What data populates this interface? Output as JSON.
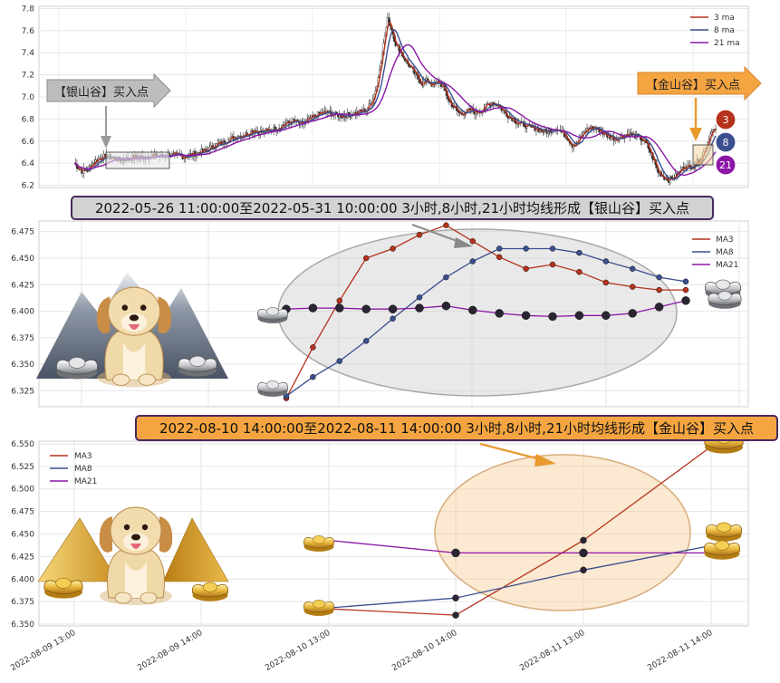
{
  "chart_data": [
    {
      "type": "line",
      "panel": "overview",
      "series": [
        {
          "name": "3 ma",
          "color": "#b5321c"
        },
        {
          "name": "8 ma",
          "color": "#3b4f8f"
        },
        {
          "name": "21 ma",
          "color": "#8b16a6"
        }
      ],
      "y_ticks": [
        "7.8",
        "7.6",
        "7.4",
        "7.2",
        "7.0",
        "6.8",
        "6.6",
        "6.4",
        "6.2"
      ],
      "ylim": [
        6.18,
        7.82
      ],
      "price_path": [
        [
          0,
          6.4
        ],
        [
          3,
          6.36
        ],
        [
          6,
          6.33
        ],
        [
          10,
          6.34
        ],
        [
          14,
          6.4
        ],
        [
          18,
          6.44
        ],
        [
          22,
          6.46
        ],
        [
          28,
          6.45
        ],
        [
          34,
          6.43
        ],
        [
          40,
          6.44
        ],
        [
          46,
          6.46
        ],
        [
          52,
          6.45
        ],
        [
          58,
          6.47
        ],
        [
          64,
          6.46
        ],
        [
          70,
          6.48
        ],
        [
          76,
          6.47
        ],
        [
          82,
          6.46
        ],
        [
          88,
          6.48
        ],
        [
          94,
          6.5
        ],
        [
          100,
          6.52
        ],
        [
          104,
          6.56
        ],
        [
          110,
          6.58
        ],
        [
          116,
          6.62
        ],
        [
          122,
          6.64
        ],
        [
          128,
          6.66
        ],
        [
          134,
          6.7
        ],
        [
          140,
          6.68
        ],
        [
          146,
          6.7
        ],
        [
          152,
          6.72
        ],
        [
          158,
          6.76
        ],
        [
          164,
          6.78
        ],
        [
          170,
          6.75
        ],
        [
          176,
          6.8
        ],
        [
          182,
          6.84
        ],
        [
          188,
          6.86
        ],
        [
          194,
          6.84
        ],
        [
          200,
          6.83
        ],
        [
          206,
          6.84
        ],
        [
          212,
          6.86
        ],
        [
          218,
          6.88
        ],
        [
          222,
          6.95
        ],
        [
          226,
          7.1
        ],
        [
          230,
          7.4
        ],
        [
          234,
          7.7
        ],
        [
          237,
          7.62
        ],
        [
          240,
          7.48
        ],
        [
          244,
          7.4
        ],
        [
          248,
          7.32
        ],
        [
          252,
          7.25
        ],
        [
          256,
          7.18
        ],
        [
          260,
          7.12
        ],
        [
          264,
          7.15
        ],
        [
          268,
          7.1
        ],
        [
          272,
          7.14
        ],
        [
          276,
          7.08
        ],
        [
          280,
          6.96
        ],
        [
          284,
          6.9
        ],
        [
          288,
          6.85
        ],
        [
          292,
          6.86
        ],
        [
          296,
          6.88
        ],
        [
          300,
          6.86
        ],
        [
          304,
          6.88
        ],
        [
          308,
          6.92
        ],
        [
          312,
          6.95
        ],
        [
          316,
          6.93
        ],
        [
          320,
          6.88
        ],
        [
          324,
          6.83
        ],
        [
          328,
          6.8
        ],
        [
          332,
          6.76
        ],
        [
          336,
          6.75
        ],
        [
          340,
          6.72
        ],
        [
          344,
          6.72
        ],
        [
          348,
          6.7
        ],
        [
          352,
          6.68
        ],
        [
          356,
          6.7
        ],
        [
          360,
          6.72
        ],
        [
          364,
          6.68
        ],
        [
          368,
          6.64
        ],
        [
          372,
          6.56
        ],
        [
          376,
          6.6
        ],
        [
          380,
          6.66
        ],
        [
          384,
          6.72
        ],
        [
          388,
          6.72
        ],
        [
          392,
          6.7
        ],
        [
          396,
          6.66
        ],
        [
          400,
          6.64
        ],
        [
          404,
          6.62
        ],
        [
          408,
          6.64
        ],
        [
          412,
          6.66
        ],
        [
          416,
          6.66
        ],
        [
          420,
          6.64
        ],
        [
          424,
          6.62
        ],
        [
          428,
          6.56
        ],
        [
          432,
          6.45
        ],
        [
          436,
          6.32
        ],
        [
          440,
          6.28
        ],
        [
          444,
          6.25
        ],
        [
          448,
          6.27
        ],
        [
          452,
          6.32
        ],
        [
          456,
          6.38
        ],
        [
          460,
          6.36
        ],
        [
          464,
          6.4
        ],
        [
          468,
          6.44
        ],
        [
          472,
          6.55
        ],
        [
          476,
          6.7
        ]
      ],
      "regions": [
        {
          "label": "【银山谷】买入点",
          "style": "silver"
        },
        {
          "label": "【金山谷】买入点",
          "style": "gold"
        }
      ],
      "badges": [
        "3",
        "8",
        "21"
      ]
    },
    {
      "type": "line",
      "panel": "silver-detail",
      "title": "2022-05-26 11:00:00至2022-05-31 10:00:00 3小时,8小时,21小时均线形成【银山谷】买入点",
      "y_ticks": [
        "6.475",
        "6.450",
        "6.425",
        "6.400",
        "6.375",
        "6.350",
        "6.325"
      ],
      "ylim": [
        6.31,
        6.485
      ],
      "series": [
        {
          "name": "MA3",
          "color": "#b5321c",
          "values": [
            6.318,
            6.366,
            6.41,
            6.45,
            6.459,
            6.472,
            6.481,
            6.466,
            6.451,
            6.44,
            6.444,
            6.437,
            6.427,
            6.423,
            6.42,
            6.42
          ]
        },
        {
          "name": "MA8",
          "color": "#3b4f8f",
          "values": [
            6.32,
            6.338,
            6.353,
            6.372,
            6.393,
            6.413,
            6.432,
            6.447,
            6.459,
            6.459,
            6.459,
            6.455,
            6.447,
            6.44,
            6.432,
            6.428
          ]
        },
        {
          "name": "MA21",
          "color": "#8b16a6",
          "values": [
            6.402,
            6.403,
            6.403,
            6.402,
            6.402,
            6.403,
            6.405,
            6.401,
            6.398,
            6.396,
            6.395,
            6.396,
            6.396,
            6.398,
            6.404,
            6.41
          ]
        }
      ]
    },
    {
      "type": "line",
      "panel": "gold-detail",
      "title": "2022-08-10 14:00:00至2022-08-11 14:00:00 3小时,8小时,21小时均线形成【金山谷】买入点",
      "x": [
        "2022-08-09 13:00",
        "2022-08-09 14:00",
        "2022-08-10 13:00",
        "2022-08-10 14:00",
        "2022-08-11 13:00",
        "2022-08-11 14:00"
      ],
      "y_ticks": [
        "6.550",
        "6.525",
        "6.500",
        "6.475",
        "6.450",
        "6.425",
        "6.400",
        "6.375",
        "6.350"
      ],
      "ylim": [
        6.348,
        6.553
      ],
      "series": [
        {
          "name": "MA3",
          "color": "#b5321c",
          "values": [
            null,
            null,
            6.367,
            6.36,
            6.443,
            6.547
          ]
        },
        {
          "name": "MA8",
          "color": "#3b4f8f",
          "values": [
            null,
            null,
            6.368,
            6.379,
            6.41,
            6.437
          ]
        },
        {
          "name": "MA21",
          "color": "#8b16a6",
          "values": [
            null,
            null,
            6.443,
            6.429,
            6.429,
            6.429
          ]
        }
      ]
    }
  ]
}
